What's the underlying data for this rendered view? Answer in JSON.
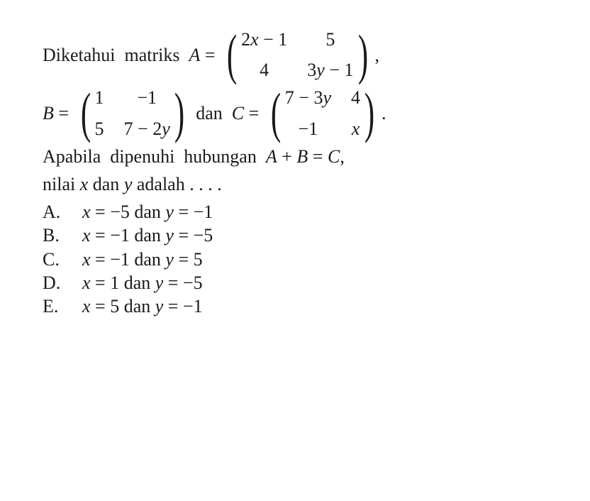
{
  "problem": {
    "line1_prefix": "Diketahui  matriks  ",
    "A_label": "A",
    "eq": " = ",
    "matrix_A": {
      "r1c1": "2",
      "r1c1_var": "x",
      "r1c1_suffix": " − 1",
      "r1c2": "5",
      "r2c1": "4",
      "r2c2_prefix": "3",
      "r2c2_var": "y",
      "r2c2_suffix": " − 1"
    },
    "line1_suffix": ",",
    "B_label": "B",
    "matrix_B": {
      "r1c1": "1",
      "r1c2": "−1",
      "r2c1": "5",
      "r2c2_prefix": "7 − 2",
      "r2c2_var": "y"
    },
    "mid_text": " dan  ",
    "C_label": "C",
    "matrix_C": {
      "r1c1_prefix": "7 − 3",
      "r1c1_var": "y",
      "r1c2": "4",
      "r2c1": "−1",
      "r2c2_var": "x"
    },
    "line2_suffix": ".",
    "line3a": "Apabila  dipenuhi  hubungan  ",
    "line3_expr_A": "A",
    "line3_plus": " + ",
    "line3_expr_B": "B",
    "line3_eq": " = ",
    "line3_expr_C": "C",
    "line3_comma": ",",
    "line4a": "nilai ",
    "line4_x": "x",
    "line4_mid": " dan ",
    "line4_y": "y",
    "line4b": " adalah . . . ."
  },
  "options": [
    {
      "label": "A.",
      "pre": "x",
      "mid1": " = −5 dan ",
      "var2": "y",
      "mid2": " = −1"
    },
    {
      "label": "B.",
      "pre": "x",
      "mid1": " = −1 dan ",
      "var2": "y",
      "mid2": " = −5"
    },
    {
      "label": "C.",
      "pre": "x",
      "mid1": " = −1 dan ",
      "var2": "y",
      "mid2": " = 5"
    },
    {
      "label": "D.",
      "pre": "x",
      "mid1": " = 1 dan ",
      "var2": "y",
      "mid2": " = −5"
    },
    {
      "label": "E.",
      "pre": "x",
      "mid1": " = 5 dan ",
      "var2": "y",
      "mid2": " = −1"
    }
  ]
}
